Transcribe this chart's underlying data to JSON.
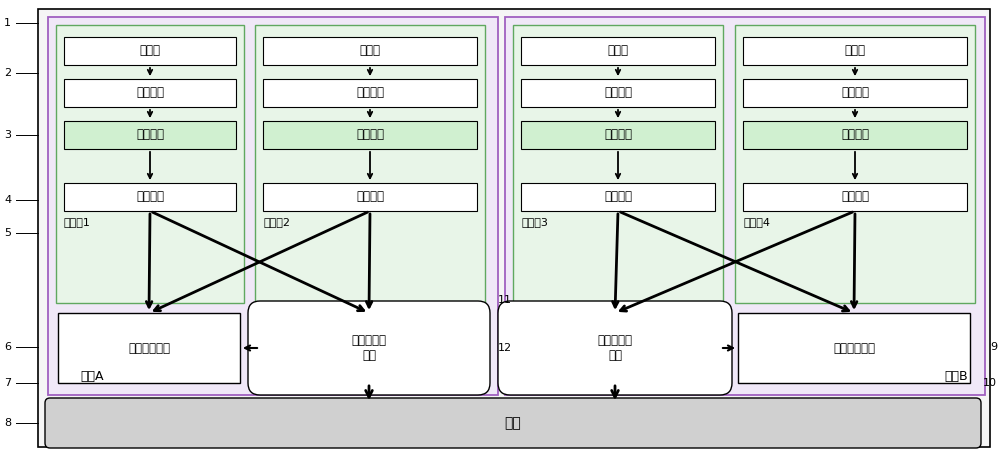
{
  "labels": {
    "yingyong": "应用层",
    "biancheng": "编程接口",
    "shebei": "设备驱动",
    "xuni_shebei": "虚拟设备",
    "vm1": "虚拟机1",
    "vm2": "虚拟机2",
    "vm3": "虚拟机3",
    "vm4": "虚拟机4",
    "shared_mem": "共享存储空间",
    "vm_service": "虚拟机服务\n模块",
    "host_a": "主机A",
    "host_b": "主机B",
    "network": "网络",
    "l1": "1",
    "l2": "2",
    "l3": "3",
    "l4": "4",
    "l5": "5",
    "l6": "6",
    "l7": "7",
    "l8": "8",
    "l9": "9",
    "l10": "10",
    "l11": "11",
    "l12": "12"
  },
  "colors": {
    "white": "#ffffff",
    "fig_bg": "#ffffff",
    "outer_bg": "#f5f5f5",
    "host_bg": "#f0e8f8",
    "host_ec": "#a060c0",
    "vm_bg": "#e8f5e8",
    "vm_ec": "#60a860",
    "shebei_bg": "#d0f0d0",
    "network_bg": "#d0d0d0",
    "network_ec": "#808080"
  }
}
